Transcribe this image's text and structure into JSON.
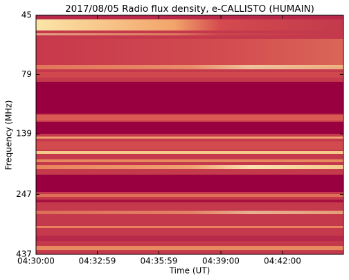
{
  "chart_data": {
    "type": "spectrogram",
    "title": "2017/08/05  Radio flux density, e-CALLISTO (HUMAIN)",
    "xlabel": "Time (UT)",
    "ylabel": "Frequency (MHz)",
    "xlim": [
      16200,
      17098
    ],
    "xticks": [
      {
        "value": 16200,
        "label": "04:30:00"
      },
      {
        "value": 16379,
        "label": "04:32:59"
      },
      {
        "value": 16559,
        "label": "04:35:59"
      },
      {
        "value": 16740,
        "label": "04:39:00"
      },
      {
        "value": 16920,
        "label": "04:42:00"
      }
    ],
    "ylim": [
      45,
      437
    ],
    "ylog": true,
    "yinverted": true,
    "yticks": [
      45,
      79,
      139,
      247,
      437
    ]
  }
}
